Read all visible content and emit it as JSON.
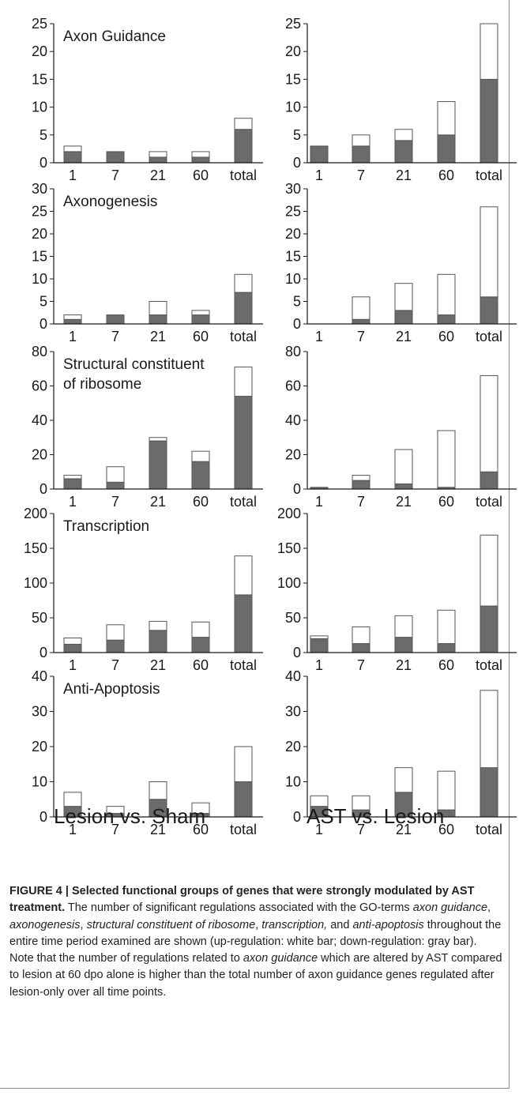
{
  "chart_data": [
    {
      "type": "bar",
      "stacked": true,
      "title": "Axon Guidance",
      "categories": [
        "1",
        "7",
        "21",
        "60",
        "total"
      ],
      "ylim": [
        0,
        25
      ],
      "yticks": [
        0,
        5,
        10,
        15,
        20,
        25
      ],
      "series": [
        {
          "name": "down-regulation",
          "values": [
            2,
            2,
            1,
            1,
            6
          ]
        },
        {
          "name": "up-regulation",
          "values": [
            1,
            0,
            1,
            1,
            2
          ]
        }
      ]
    },
    {
      "type": "bar",
      "stacked": true,
      "title": "",
      "categories": [
        "1",
        "7",
        "21",
        "60",
        "total"
      ],
      "ylim": [
        0,
        25
      ],
      "yticks": [
        0,
        5,
        10,
        15,
        20,
        25
      ],
      "series": [
        {
          "name": "down-regulation",
          "values": [
            3,
            3,
            4,
            5,
            15
          ]
        },
        {
          "name": "up-regulation",
          "values": [
            0,
            2,
            2,
            6,
            10
          ]
        }
      ]
    },
    {
      "type": "bar",
      "stacked": true,
      "title": "Axonogenesis",
      "categories": [
        "1",
        "7",
        "21",
        "60",
        "total"
      ],
      "ylim": [
        0,
        30
      ],
      "yticks": [
        0,
        5,
        10,
        15,
        20,
        25,
        30
      ],
      "series": [
        {
          "name": "down-regulation",
          "values": [
            1,
            2,
            2,
            2,
            7
          ]
        },
        {
          "name": "up-regulation",
          "values": [
            1,
            0,
            3,
            1,
            4
          ]
        }
      ]
    },
    {
      "type": "bar",
      "stacked": true,
      "title": "",
      "categories": [
        "1",
        "7",
        "21",
        "60",
        "total"
      ],
      "ylim": [
        0,
        30
      ],
      "yticks": [
        0,
        5,
        10,
        15,
        20,
        25,
        30
      ],
      "series": [
        {
          "name": "down-regulation",
          "values": [
            0,
            1,
            3,
            2,
            6
          ]
        },
        {
          "name": "up-regulation",
          "values": [
            0,
            5,
            6,
            9,
            20
          ]
        }
      ]
    },
    {
      "type": "bar",
      "stacked": true,
      "title": "Structural constituent of ribosome",
      "title_lines": [
        "Structural constituent",
        "of ribosome"
      ],
      "categories": [
        "1",
        "7",
        "21",
        "60",
        "total"
      ],
      "ylim": [
        0,
        80
      ],
      "yticks": [
        0,
        20,
        40,
        60,
        80
      ],
      "series": [
        {
          "name": "down-regulation",
          "values": [
            6,
            4,
            28,
            16,
            54
          ]
        },
        {
          "name": "up-regulation",
          "values": [
            2,
            9,
            2,
            6,
            17
          ]
        }
      ]
    },
    {
      "type": "bar",
      "stacked": true,
      "title": "",
      "categories": [
        "1",
        "7",
        "21",
        "60",
        "total"
      ],
      "ylim": [
        0,
        80
      ],
      "yticks": [
        0,
        20,
        40,
        60,
        80
      ],
      "series": [
        {
          "name": "down-regulation",
          "values": [
            1,
            5,
            3,
            1,
            10
          ]
        },
        {
          "name": "up-regulation",
          "values": [
            0,
            3,
            20,
            33,
            56
          ]
        }
      ]
    },
    {
      "type": "bar",
      "stacked": true,
      "title": "Transcription",
      "categories": [
        "1",
        "7",
        "21",
        "60",
        "total"
      ],
      "ylim": [
        0,
        200
      ],
      "yticks": [
        0,
        50,
        100,
        150,
        200
      ],
      "series": [
        {
          "name": "down-regulation",
          "values": [
            12,
            18,
            32,
            22,
            83
          ]
        },
        {
          "name": "up-regulation",
          "values": [
            9,
            22,
            13,
            22,
            56
          ]
        }
      ]
    },
    {
      "type": "bar",
      "stacked": true,
      "title": "",
      "categories": [
        "1",
        "7",
        "21",
        "60",
        "total"
      ],
      "ylim": [
        0,
        200
      ],
      "yticks": [
        0,
        50,
        100,
        150,
        200
      ],
      "series": [
        {
          "name": "down-regulation",
          "values": [
            20,
            13,
            22,
            13,
            67
          ]
        },
        {
          "name": "up-regulation",
          "values": [
            4,
            24,
            31,
            48,
            102
          ]
        }
      ]
    },
    {
      "type": "bar",
      "stacked": true,
      "title": "Anti-Apoptosis",
      "categories": [
        "1",
        "7",
        "21",
        "60",
        "total"
      ],
      "ylim": [
        0,
        40
      ],
      "yticks": [
        0,
        10,
        20,
        30,
        40
      ],
      "series": [
        {
          "name": "down-regulation",
          "values": [
            3,
            1,
            5,
            1,
            10
          ]
        },
        {
          "name": "up-regulation",
          "values": [
            4,
            2,
            5,
            3,
            10
          ]
        }
      ]
    },
    {
      "type": "bar",
      "stacked": true,
      "title": "",
      "categories": [
        "1",
        "7",
        "21",
        "60",
        "total"
      ],
      "ylim": [
        0,
        40
      ],
      "yticks": [
        0,
        10,
        20,
        30,
        40
      ],
      "series": [
        {
          "name": "down-regulation",
          "values": [
            3,
            2,
            7,
            2,
            14
          ]
        },
        {
          "name": "up-regulation",
          "values": [
            3,
            4,
            7,
            11,
            22
          ]
        }
      ]
    }
  ],
  "columns": {
    "left": "Lesion vs. Sham",
    "right": "AST vs. Lesion"
  },
  "caption": {
    "heading": "FIGURE 4 | Selected functional groups of genes that were strongly modulated by AST treatment.",
    "p1": " The number of significant regulations associated with the GO-terms ",
    "t1": "axon guidance",
    "p2": ", ",
    "t2": "axonogenesis",
    "p3": ", ",
    "t3": "structural constituent of ribosome",
    "p4": ", ",
    "t4": "transcription,",
    "p5": " and ",
    "t5": "anti-apoptosis",
    "p6": " throughout the entire time period examined are shown (up-regulation: white bar; down-regulation: gray bar). Note that the number of regulations related to ",
    "t6": "axon guidance",
    "p7": " which are altered by AST compared to lesion at 60 dpo alone is higher than the total number of axon guidance genes regulated after lesion-only over all time points."
  },
  "colors": {
    "down": "#6b6b6b",
    "up": "#ffffff",
    "stroke": "#555555",
    "text": "#1a1a1a"
  }
}
